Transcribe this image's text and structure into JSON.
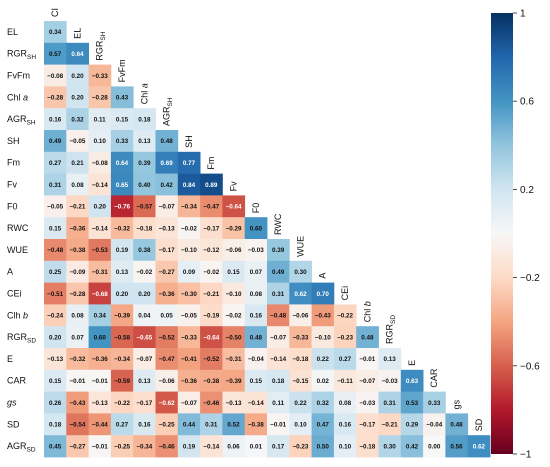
{
  "chart_data": {
    "type": "heatmap",
    "title": "",
    "variables": [
      "CI",
      "EL",
      "RGR_SH",
      "FvFm",
      "Chl a",
      "AGR_SH",
      "SH",
      "Fm",
      "Fv",
      "F0",
      "RWC",
      "WUE",
      "A",
      "CEi",
      "Clh b",
      "RGR_SD",
      "E",
      "CAR",
      "gs",
      "SD",
      "AGR_SD"
    ],
    "row_labels": [
      {
        "base": "EL",
        "sub": "",
        "italic": false
      },
      {
        "base": "RGR",
        "sub": "SH",
        "italic": false
      },
      {
        "base": "FvFm",
        "sub": "",
        "italic": false
      },
      {
        "base": "Chl ",
        "sub": "",
        "italic": false,
        "italic_suffix": "a"
      },
      {
        "base": "AGR",
        "sub": "SH",
        "italic": false
      },
      {
        "base": "SH",
        "sub": "",
        "italic": false
      },
      {
        "base": "Fm",
        "sub": "",
        "italic": false
      },
      {
        "base": "Fv",
        "sub": "",
        "italic": false
      },
      {
        "base": "F0",
        "sub": "",
        "italic": false
      },
      {
        "base": "RWC",
        "sub": "",
        "italic": false
      },
      {
        "base": "WUE",
        "sub": "",
        "italic": false
      },
      {
        "base": "A",
        "sub": "",
        "italic": false
      },
      {
        "base": "CEi",
        "sub": "",
        "italic": false
      },
      {
        "base": "Clh ",
        "sub": "",
        "italic": false,
        "italic_suffix": "b"
      },
      {
        "base": "RGR",
        "sub": "SD",
        "italic": false
      },
      {
        "base": "E",
        "sub": "",
        "italic": false
      },
      {
        "base": "CAR",
        "sub": "",
        "italic": false
      },
      {
        "base": "gs",
        "sub": "",
        "italic": true
      },
      {
        "base": "SD",
        "sub": "",
        "italic": false
      },
      {
        "base": "AGR",
        "sub": "SD",
        "italic": false
      }
    ],
    "col_labels": [
      {
        "base": "CI",
        "sub": "",
        "italic": false
      },
      {
        "base": "EL",
        "sub": "",
        "italic": false
      },
      {
        "base": "RGR",
        "sub": "SH",
        "italic": false
      },
      {
        "base": "FvFm",
        "sub": "",
        "italic": false
      },
      {
        "base": "Chl ",
        "sub": "",
        "italic": false,
        "italic_suffix": "a"
      },
      {
        "base": "AGR",
        "sub": "SH",
        "italic": false
      },
      {
        "base": "SH",
        "sub": "",
        "italic": false
      },
      {
        "base": "Fm",
        "sub": "",
        "italic": false
      },
      {
        "base": "Fv",
        "sub": "",
        "italic": false
      },
      {
        "base": "F0",
        "sub": "",
        "italic": false
      },
      {
        "base": "RWC",
        "sub": "",
        "italic": false
      },
      {
        "base": "WUE",
        "sub": "",
        "italic": false
      },
      {
        "base": "A",
        "sub": "",
        "italic": false
      },
      {
        "base": "CEi",
        "sub": "",
        "italic": false
      },
      {
        "base": "Chl ",
        "sub": "",
        "italic": false,
        "italic_suffix": "b"
      },
      {
        "base": "RGR",
        "sub": "SD",
        "italic": false
      },
      {
        "base": "E",
        "sub": "",
        "italic": false
      },
      {
        "base": "CAR",
        "sub": "",
        "italic": false
      },
      {
        "base": "gs",
        "sub": "",
        "italic": false
      },
      {
        "base": "SD",
        "sub": "",
        "italic": false
      }
    ],
    "values": [
      [
        0.34
      ],
      [
        0.57,
        0.64
      ],
      [
        -0.08,
        0.2,
        -0.33
      ],
      [
        -0.28,
        0.2,
        -0.28,
        0.43
      ],
      [
        0.16,
        0.32,
        0.11,
        0.15,
        0.18
      ],
      [
        0.49,
        -0.05,
        0.1,
        0.33,
        0.13,
        0.48
      ],
      [
        0.27,
        0.21,
        -0.08,
        0.64,
        0.39,
        0.69,
        0.77
      ],
      [
        0.31,
        0.08,
        -0.14,
        0.65,
        0.4,
        0.42,
        0.84,
        0.89
      ],
      [
        -0.05,
        -0.21,
        0.2,
        -0.76,
        -0.57,
        -0.07,
        -0.34,
        -0.47,
        -0.64
      ],
      [
        0.15,
        -0.36,
        -0.14,
        -0.32,
        -0.18,
        -0.13,
        -0.02,
        -0.17,
        -0.29,
        0.6
      ],
      [
        -0.48,
        -0.38,
        -0.53,
        0.19,
        0.38,
        -0.17,
        -0.1,
        -0.12,
        -0.06,
        -0.03,
        0.39
      ],
      [
        0.25,
        -0.09,
        -0.31,
        0.13,
        -0.02,
        -0.27,
        0.09,
        -0.02,
        0.15,
        0.07,
        0.49,
        0.3
      ],
      [
        -0.51,
        -0.28,
        -0.68,
        0.2,
        0.2,
        -0.36,
        -0.3,
        -0.21,
        -0.1,
        0.08,
        0.31,
        0.62,
        0.7
      ],
      [
        -0.24,
        0.08,
        0.34,
        -0.39,
        0.04,
        0.05,
        -0.05,
        -0.19,
        -0.02,
        0.16,
        -0.48,
        -0.06,
        -0.43,
        -0.22
      ],
      [
        0.2,
        0.07,
        0.6,
        -0.58,
        -0.65,
        -0.52,
        -0.33,
        -0.64,
        -0.5,
        0.48,
        -0.07,
        -0.33,
        -0.1,
        -0.23,
        0.48
      ],
      [
        -0.13,
        -0.32,
        -0.36,
        -0.34,
        -0.07,
        -0.47,
        -0.41,
        -0.52,
        -0.31,
        -0.04,
        -0.14,
        -0.18,
        0.22,
        0.27,
        -0.01,
        0.13
      ],
      [
        0.15,
        -0.01,
        -0.01,
        -0.59,
        0.13,
        -0.06,
        -0.36,
        -0.38,
        -0.39,
        0.15,
        0.18,
        -0.15,
        0.02,
        -0.11,
        -0.07,
        -0.03,
        0.63
      ],
      [
        0.26,
        -0.43,
        -0.13,
        -0.22,
        -0.17,
        -0.62,
        -0.07,
        -0.46,
        -0.13,
        -0.14,
        0.11,
        0.22,
        0.32,
        0.08,
        -0.03,
        0.31,
        0.53,
        0.33
      ],
      [
        0.18,
        -0.54,
        -0.44,
        0.27,
        0.16,
        -0.25,
        0.44,
        0.31,
        0.52,
        -0.38,
        -0.01,
        0.1,
        0.47,
        0.16,
        -0.17,
        -0.21,
        0.29,
        -0.04,
        0.48
      ],
      [
        0.45,
        -0.27,
        -0.01,
        -0.25,
        -0.34,
        -0.46,
        0.19,
        -0.14,
        0.06,
        0.01,
        0.17,
        -0.23,
        0.5,
        0.1,
        -0.18,
        0.3,
        0.42,
        0.0,
        0.56,
        0.62
      ]
    ],
    "colorbar": {
      "range": [
        -1,
        1
      ],
      "ticks": [
        1,
        0.6,
        0.2,
        -0.2,
        -0.6,
        -1
      ],
      "tick_labels": [
        "1",
        "0.6",
        "0.2",
        "−0.2",
        "−0.6",
        "−1"
      ],
      "colormap": "RdBu",
      "color_stops": [
        "#67001f",
        "#b2182b",
        "#d6604d",
        "#f4a582",
        "#fddbc7",
        "#f7f7f7",
        "#d1e5f0",
        "#92c5de",
        "#4393c3",
        "#2166ac",
        "#053061"
      ]
    },
    "grid": false,
    "legend": "colorbar right"
  }
}
